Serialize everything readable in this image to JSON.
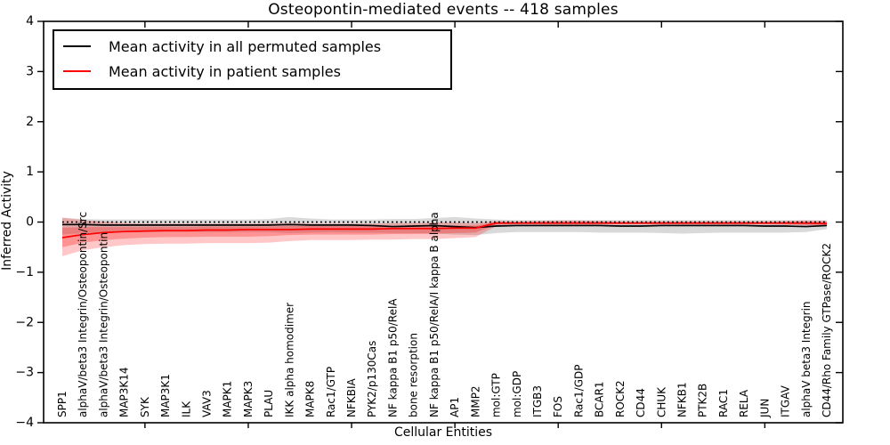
{
  "legend": {
    "entries": [
      {
        "label": "Mean activity in all permuted samples",
        "color": "#000000"
      },
      {
        "label": "Mean activity in patient samples",
        "color": "#ff0000"
      }
    ],
    "position": "upper left"
  },
  "chart_data": {
    "type": "line",
    "title": "Osteopontin-mediated events -- 418 samples",
    "xlabel": "Cellular Entities",
    "ylabel": "Inferred Activity",
    "ylim": [
      -4,
      4
    ],
    "y_ticks": [
      4,
      3,
      2,
      1,
      0,
      -1,
      -2,
      -3,
      -4
    ],
    "zero_line": 0,
    "grid": false,
    "top_tick_indices": [
      4,
      9,
      14,
      19,
      24,
      29,
      34
    ],
    "categories": [
      "SPP1",
      "alphaV/beta3 Integrin/Osteopontin/Src",
      "alphaV/beta3 Integrin/Osteopontin",
      "MAP3K14",
      "SYK",
      "MAP3K1",
      "ILK",
      "VAV3",
      "MAPK1",
      "MAPK3",
      "PLAU",
      "IKK alpha homodimer",
      "MAPK8",
      "Rac1/GTP",
      "NFKBIA",
      "PYK2/p130Cas",
      "NF kappa B1 p50/RelA",
      "bone resorption",
      "NF kappa B1 p50/RelA/I kappa B alpha",
      "AP1",
      "MMP2",
      "mol:GTP",
      "mol:GDP",
      "ITGB3",
      "FOS",
      "Rac1/GDP",
      "BCAR1",
      "ROCK2",
      "CD44",
      "CHUK",
      "NFKB1",
      "PTK2B",
      "RAC1",
      "RELA",
      "JUN",
      "ITGAV",
      "alphaV beta3 Integrin",
      "CD44/Rho Family GTPase/ROCK2"
    ],
    "series": [
      {
        "name": "Mean activity in all permuted samples",
        "color": "#000000",
        "values": [
          -0.05,
          -0.05,
          -0.06,
          -0.06,
          -0.06,
          -0.06,
          -0.06,
          -0.06,
          -0.06,
          -0.06,
          -0.06,
          -0.05,
          -0.06,
          -0.06,
          -0.06,
          -0.07,
          -0.09,
          -0.08,
          -0.07,
          -0.09,
          -0.11,
          -0.08,
          -0.07,
          -0.07,
          -0.07,
          -0.07,
          -0.07,
          -0.08,
          -0.08,
          -0.07,
          -0.07,
          -0.07,
          -0.07,
          -0.07,
          -0.08,
          -0.08,
          -0.09,
          -0.07
        ]
      },
      {
        "name": "Mean activity in patient samples",
        "color": "#ff0000",
        "values": [
          -0.31,
          -0.25,
          -0.21,
          -0.19,
          -0.18,
          -0.17,
          -0.17,
          -0.16,
          -0.16,
          -0.15,
          -0.15,
          -0.15,
          -0.14,
          -0.14,
          -0.14,
          -0.14,
          -0.13,
          -0.13,
          -0.13,
          -0.12,
          -0.12,
          -0.02,
          -0.02,
          -0.02,
          -0.02,
          -0.02,
          -0.02,
          -0.02,
          -0.02,
          -0.02,
          -0.02,
          -0.02,
          -0.02,
          -0.02,
          -0.02,
          -0.02,
          -0.02,
          -0.03
        ]
      }
    ],
    "bands": [
      {
        "name": "permuted-range-band",
        "color": "rgba(0,0,0,0.15)",
        "upper": [
          0.08,
          0.06,
          0.05,
          0.05,
          0.05,
          0.05,
          0.05,
          0.05,
          0.05,
          0.05,
          0.06,
          0.1,
          0.07,
          0.05,
          0.05,
          0.05,
          0.06,
          0.06,
          0.08,
          0.1,
          0.07,
          0.05,
          0.04,
          0.04,
          0.04,
          0.04,
          0.04,
          0.04,
          0.04,
          0.04,
          0.04,
          0.04,
          0.04,
          0.04,
          0.04,
          0.04,
          0.04,
          0.03
        ],
        "lower": [
          -0.25,
          -0.22,
          -0.21,
          -0.2,
          -0.2,
          -0.2,
          -0.2,
          -0.2,
          -0.2,
          -0.2,
          -0.2,
          -0.22,
          -0.21,
          -0.2,
          -0.21,
          -0.21,
          -0.22,
          -0.22,
          -0.23,
          -0.25,
          -0.26,
          -0.22,
          -0.2,
          -0.2,
          -0.2,
          -0.2,
          -0.21,
          -0.21,
          -0.21,
          -0.22,
          -0.23,
          -0.22,
          -0.21,
          -0.21,
          -0.21,
          -0.21,
          -0.2,
          -0.14
        ]
      },
      {
        "name": "patient-range-outer-band",
        "color": "rgba(255,0,0,0.22)",
        "upper": [
          0.09,
          0.04,
          0.01,
          -0.02,
          -0.03,
          -0.03,
          -0.03,
          -0.03,
          -0.03,
          -0.03,
          -0.03,
          -0.02,
          -0.03,
          -0.03,
          -0.03,
          -0.03,
          -0.02,
          -0.02,
          -0.01,
          -0.01,
          -0.02,
          0.02,
          0.01,
          0.02,
          0.03,
          0.03,
          0.02,
          0.01,
          0.01,
          0.01,
          0.01,
          0.01,
          0.01,
          0.01,
          0.01,
          0.02,
          0.03,
          0.03
        ],
        "lower": [
          -0.68,
          -0.56,
          -0.5,
          -0.46,
          -0.44,
          -0.43,
          -0.43,
          -0.42,
          -0.42,
          -0.42,
          -0.41,
          -0.38,
          -0.36,
          -0.36,
          -0.36,
          -0.35,
          -0.35,
          -0.34,
          -0.34,
          -0.32,
          -0.3,
          -0.08,
          -0.05,
          -0.05,
          -0.06,
          -0.06,
          -0.05,
          -0.05,
          -0.05,
          -0.05,
          -0.05,
          -0.05,
          -0.05,
          -0.05,
          -0.05,
          -0.06,
          -0.07,
          -0.08
        ]
      },
      {
        "name": "patient-range-inner-band",
        "color": "rgba(255,0,0,0.26)",
        "upper": [
          -0.11,
          -0.1,
          -0.1,
          -0.1,
          -0.1,
          -0.1,
          -0.1,
          -0.09,
          -0.09,
          -0.09,
          -0.09,
          -0.08,
          -0.08,
          -0.08,
          -0.08,
          -0.08,
          -0.08,
          -0.08,
          -0.07,
          -0.07,
          -0.07,
          0.0,
          -0.01,
          0.0,
          0.0,
          0.0,
          0.0,
          -0.01,
          -0.01,
          -0.01,
          -0.01,
          -0.01,
          -0.01,
          -0.01,
          -0.01,
          0.0,
          0.0,
          0.0
        ],
        "lower": [
          -0.5,
          -0.41,
          -0.36,
          -0.33,
          -0.31,
          -0.3,
          -0.3,
          -0.29,
          -0.29,
          -0.29,
          -0.28,
          -0.26,
          -0.25,
          -0.25,
          -0.25,
          -0.25,
          -0.24,
          -0.24,
          -0.23,
          -0.22,
          -0.21,
          -0.05,
          -0.04,
          -0.04,
          -0.04,
          -0.04,
          -0.04,
          -0.04,
          -0.04,
          -0.04,
          -0.04,
          -0.04,
          -0.04,
          -0.04,
          -0.04,
          -0.04,
          -0.05,
          -0.06
        ]
      }
    ]
  }
}
